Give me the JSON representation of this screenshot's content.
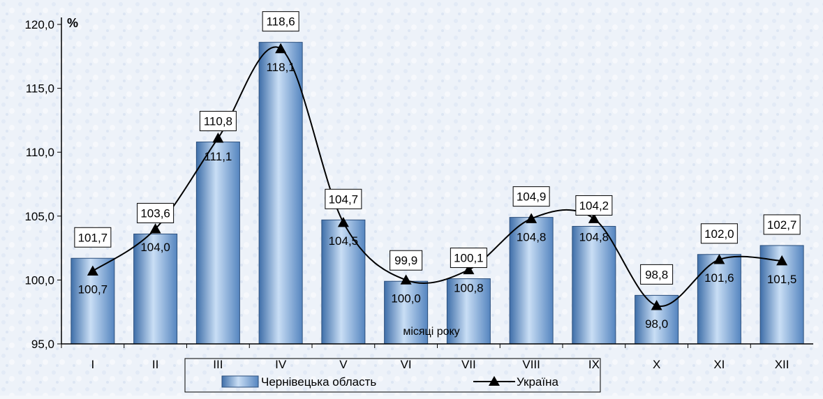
{
  "chart_data": {
    "type": "bar",
    "unit_label": "%",
    "xlabel": "місяці року",
    "categories": [
      "I",
      "II",
      "III",
      "IV",
      "V",
      "VI",
      "VII",
      "VIII",
      "IX",
      "X",
      "XI",
      "XII"
    ],
    "ylim": [
      95.0,
      120.0
    ],
    "yticks": [
      "95,0",
      "100,0",
      "105,0",
      "110,0",
      "115,0",
      "120,0"
    ],
    "series": [
      {
        "name": "Чернівецька область",
        "type": "bar",
        "values": [
          101.7,
          103.6,
          110.8,
          118.6,
          104.7,
          99.9,
          100.1,
          104.9,
          104.2,
          98.8,
          102.0,
          102.7
        ],
        "labels": [
          "101,7",
          "103,6",
          "110,8",
          "118,6",
          "104,7",
          "99,9",
          "100,1",
          "104,9",
          "104,2",
          "98,8",
          "102,0",
          "102,7"
        ]
      },
      {
        "name": "Україна",
        "type": "line",
        "values": [
          100.7,
          104.0,
          111.1,
          118.1,
          104.5,
          100.0,
          100.8,
          104.8,
          104.8,
          98.0,
          101.6,
          101.5
        ],
        "labels": [
          "100,7",
          "104,0",
          "111,1",
          "118,1",
          "104,5",
          "100,0",
          "100,8",
          "104,8",
          "104,8",
          "98,0",
          "101,6",
          "101,5"
        ]
      }
    ],
    "legend_position": "bottom-center",
    "colors": {
      "bar_light": "#c8dcf4",
      "bar_dark": "#4a7ab8",
      "line": "#000000"
    }
  }
}
